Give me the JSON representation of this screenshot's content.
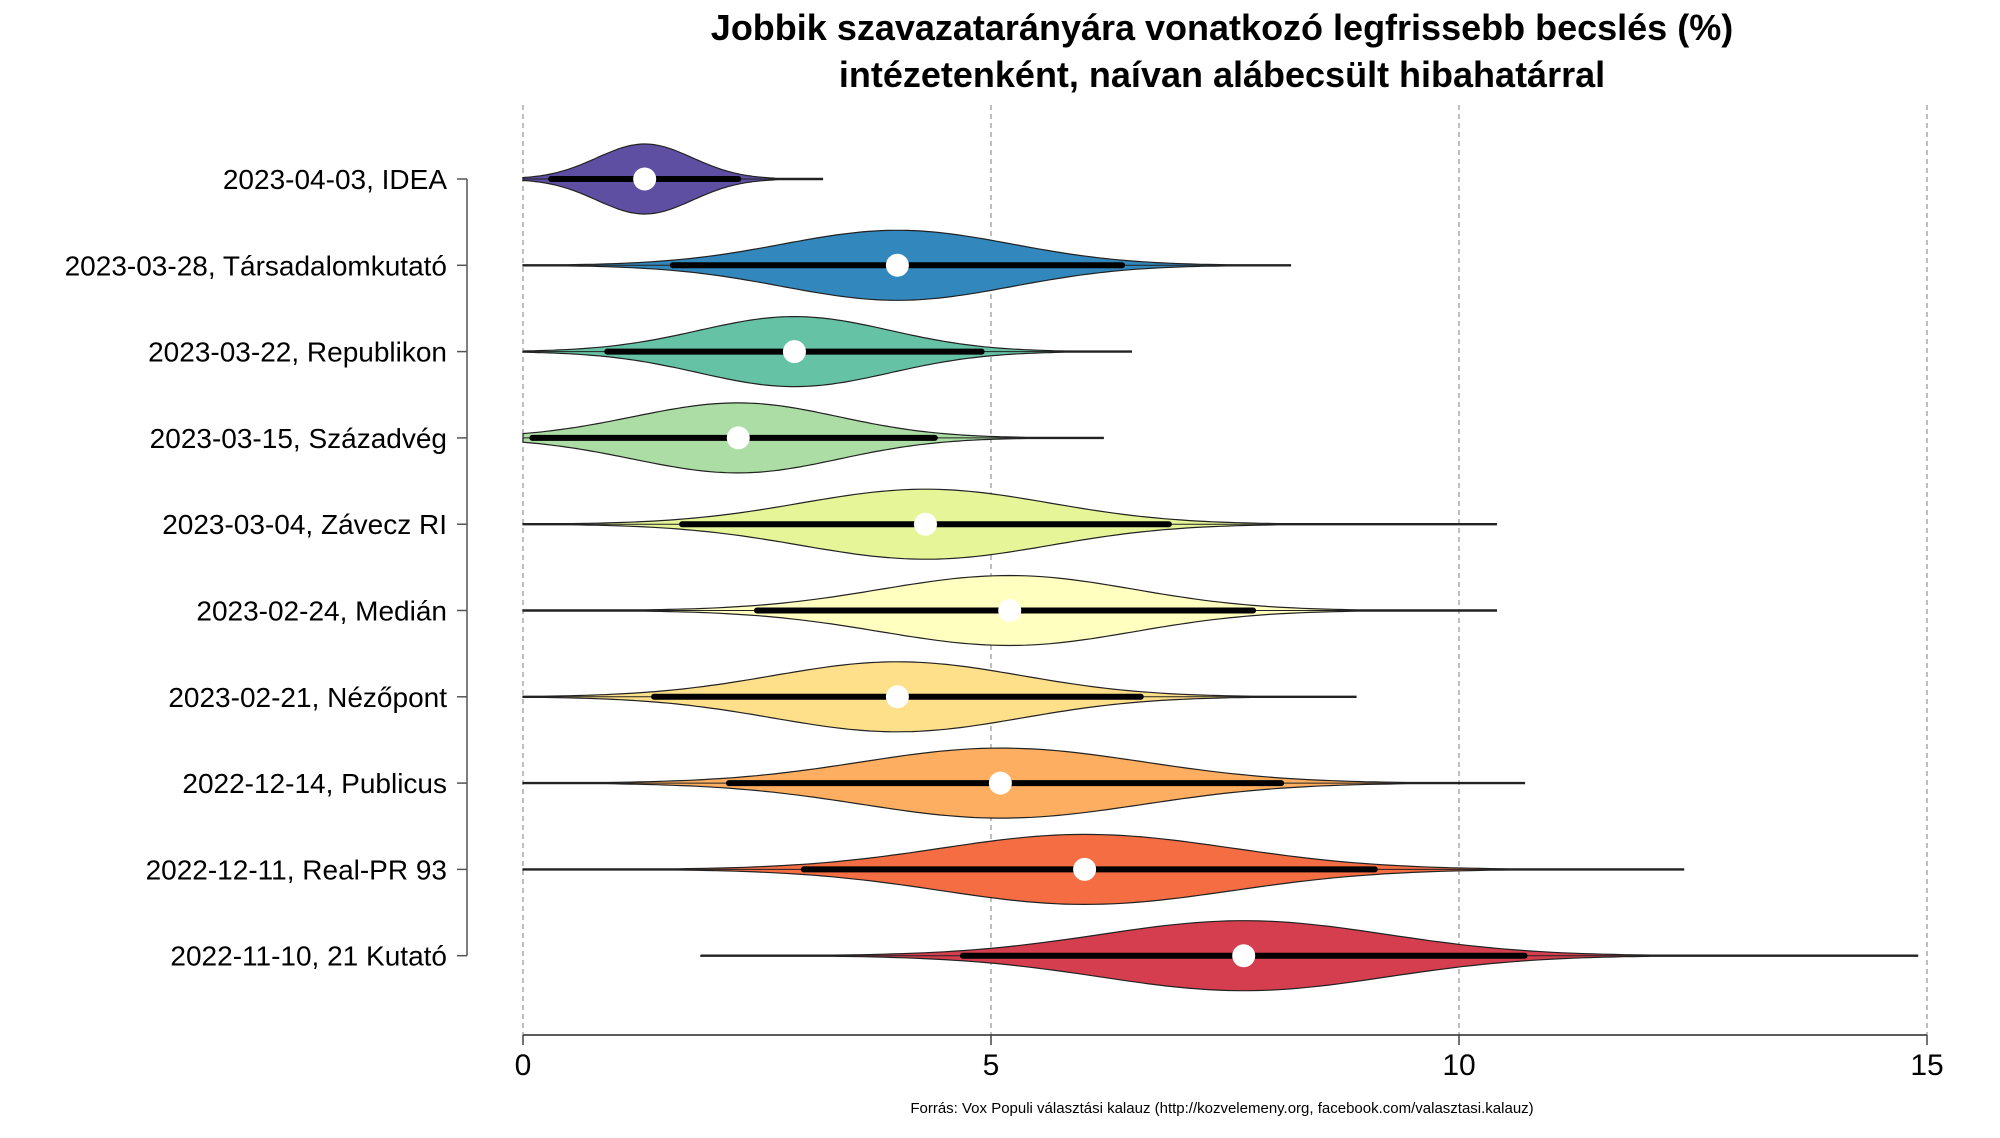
{
  "chart_data": {
    "type": "violin",
    "title": "Jobbik szavazatarányára vonatkozó legfrissebb becslés (%)",
    "subtitle": "intézetenként, naívan alábecsült hibahatárral",
    "xlabel": "",
    "ylabel": "",
    "xlim": [
      0,
      15
    ],
    "x_ticks": [
      "0",
      "5",
      "10",
      "15"
    ],
    "x_tick_values": [
      0,
      5,
      10,
      15
    ],
    "grid": "vertical dashed at 0, 5, 10, 15",
    "caption": "Forrás: Vox Populi választási kalauz (http://kozvelemeny.org, facebook.com/valasztasi.kalauz)",
    "series": [
      {
        "label": "2023-04-03, IDEA",
        "estimate": 1.3,
        "ci_low": 0.3,
        "ci_high": 2.3,
        "min": 0.0,
        "max": 3.2,
        "color": "#5e4fa2"
      },
      {
        "label": "2023-03-28, Társadalomkutató",
        "estimate": 4.0,
        "ci_low": 1.6,
        "ci_high": 6.4,
        "min": 0.0,
        "max": 8.2,
        "color": "#3288bd"
      },
      {
        "label": "2023-03-22, Republikon",
        "estimate": 2.9,
        "ci_low": 0.9,
        "ci_high": 4.9,
        "min": 0.0,
        "max": 6.5,
        "color": "#66c2a5"
      },
      {
        "label": "2023-03-15, Századvég",
        "estimate": 2.3,
        "ci_low": 0.1,
        "ci_high": 4.4,
        "min": 0.0,
        "max": 6.2,
        "color": "#abdda4"
      },
      {
        "label": "2023-03-04, Závecz RI",
        "estimate": 4.3,
        "ci_low": 1.7,
        "ci_high": 6.9,
        "min": 0.0,
        "max": 10.4,
        "color": "#e6f598"
      },
      {
        "label": "2023-02-24, Medián",
        "estimate": 5.2,
        "ci_low": 2.5,
        "ci_high": 7.8,
        "min": 0.0,
        "max": 10.4,
        "color": "#ffffbf"
      },
      {
        "label": "2023-02-21, Nézőpont",
        "estimate": 4.0,
        "ci_low": 1.4,
        "ci_high": 6.6,
        "min": 0.0,
        "max": 8.9,
        "color": "#fee08b"
      },
      {
        "label": "2022-12-14, Publicus",
        "estimate": 5.1,
        "ci_low": 2.2,
        "ci_high": 8.1,
        "min": 0.0,
        "max": 10.7,
        "color": "#fdae61"
      },
      {
        "label": "2022-12-11, Real-PR 93",
        "estimate": 6.0,
        "ci_low": 3.0,
        "ci_high": 9.1,
        "min": 0.0,
        "max": 12.4,
        "color": "#f46d43"
      },
      {
        "label": "2022-11-10, 21 Kutató",
        "estimate": 7.7,
        "ci_low": 4.7,
        "ci_high": 10.7,
        "min": 1.9,
        "max": 14.9,
        "color": "#d53e4f"
      }
    ]
  }
}
